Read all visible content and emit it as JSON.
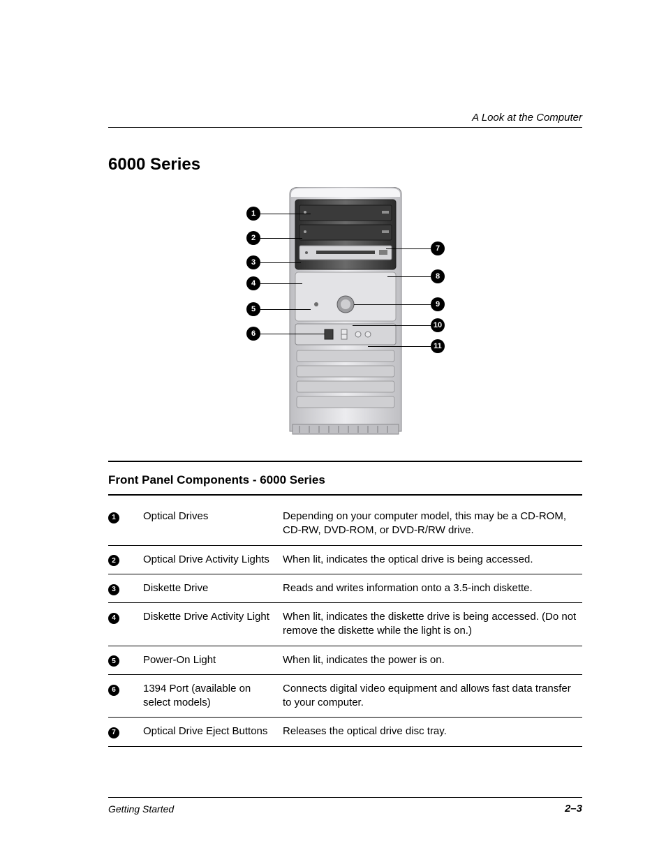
{
  "header": {
    "running_head": "A Look at the Computer",
    "section_title": "6000 Series"
  },
  "diagram": {
    "callouts_left": [
      "1",
      "2",
      "3",
      "4",
      "5",
      "6"
    ],
    "callouts_right": [
      "7",
      "8",
      "9",
      "10",
      "11"
    ],
    "callout_bg": "#000000",
    "callout_fg": "#ffffff",
    "tower_body_color": "#d9d9dc",
    "tower_dark_color": "#4f4f4f",
    "tower_outline": "#7f7f82"
  },
  "table": {
    "title": "Front Panel Components - 6000 Series",
    "rows": [
      {
        "num": "1",
        "name": "Optical Drives",
        "desc": "Depending on your computer model, this may be a CD-ROM, CD-RW, DVD-ROM, or DVD-R/RW drive."
      },
      {
        "num": "2",
        "name": "Optical Drive Activity Lights",
        "desc": "When lit, indicates the optical drive is being accessed."
      },
      {
        "num": "3",
        "name": "Diskette Drive",
        "desc": "Reads and writes information onto a 3.5-inch diskette."
      },
      {
        "num": "4",
        "name": "Diskette Drive Activity Light",
        "desc": "When lit, indicates the diskette drive is being accessed. (Do not remove the diskette while the light is on.)"
      },
      {
        "num": "5",
        "name": "Power-On Light",
        "desc": "When lit, indicates the power is on."
      },
      {
        "num": "6",
        "name": "1394 Port (available on select models)",
        "desc": "Connects digital video equipment and allows fast data transfer to your computer."
      },
      {
        "num": "7",
        "name": "Optical Drive Eject Buttons",
        "desc": "Releases the optical drive disc tray."
      }
    ]
  },
  "footer": {
    "left": "Getting Started",
    "right": "2–3"
  },
  "style": {
    "page_bg": "#ffffff",
    "text_color": "#000000",
    "title_fontsize_pt": 18,
    "body_fontsize_pt": 11,
    "running_head_fontsize_pt": 11
  }
}
